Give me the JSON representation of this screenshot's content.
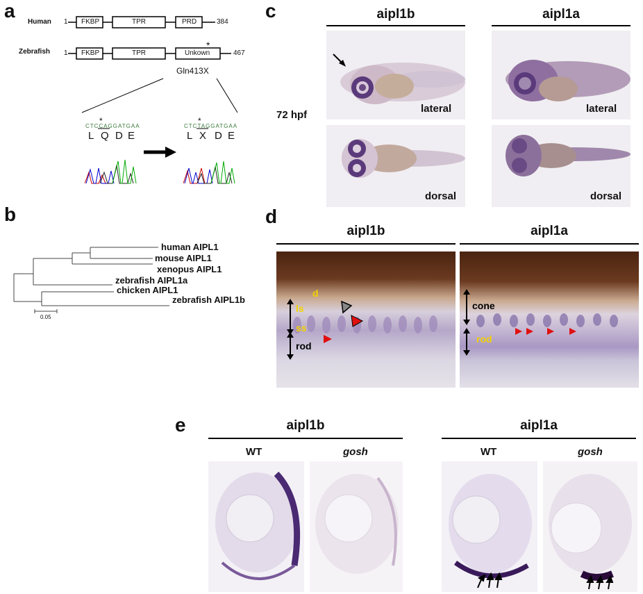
{
  "panels": {
    "a": "a",
    "b": "b",
    "c": "c",
    "d": "d",
    "e": "e"
  },
  "panel_a": {
    "human_label": "Human",
    "zebrafish_label": "Zebrafish",
    "start_1": "1",
    "start_2": "1",
    "domains_human": [
      "FKBP",
      "TPR",
      "PRD"
    ],
    "domains_zebrafish": [
      "FKBP",
      "TPR",
      "Unkown"
    ],
    "human_end": "384",
    "zebrafish_end": "467",
    "mutation": "Gln413X",
    "star": "*",
    "wt_seq": "CTCCAGGATGAA",
    "wt_aa": [
      "L",
      "Q",
      "D",
      "E"
    ],
    "mut_seq": "CTCTAGGATGAA",
    "mut_aa": [
      "L",
      "X",
      "D",
      "E"
    ]
  },
  "panel_b": {
    "taxa": [
      "human AIPL1",
      "mouse AIPL1",
      "xenopus AIPL1",
      "zebrafish AIPL1a",
      "chicken AIPL1",
      "zebrafish AIPL1b"
    ],
    "scale": "0.05"
  },
  "panel_c": {
    "col1": "aipl1b",
    "col2": "aipl1a",
    "stage": "72 hpf",
    "lateral": "lateral",
    "dorsal": "dorsal"
  },
  "panel_d": {
    "col1": "aipl1b",
    "col2": "aipl1a",
    "d_label": "d",
    "ls_label": "ls",
    "ss_label": "ss",
    "rod_label": "rod",
    "cone_label": "cone",
    "rod2_label": "rod"
  },
  "panel_e": {
    "col1": "aipl1b",
    "col2": "aipl1a",
    "wt": "WT",
    "gosh": "gosh"
  },
  "colors": {
    "stain": "#4a2a72",
    "pigment": "#3a1a0a",
    "arrow_red": "#e01010",
    "label_yellow": "#f2d200"
  }
}
